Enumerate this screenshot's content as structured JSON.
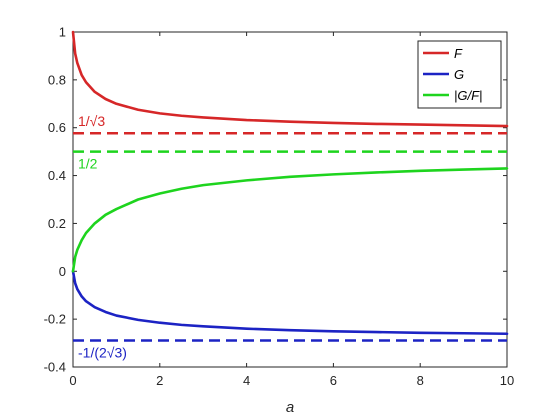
{
  "chart_data": {
    "type": "line",
    "xlabel": "a",
    "ylabel": "",
    "xlim": [
      0,
      10
    ],
    "ylim": [
      -0.4,
      1
    ],
    "xticks": [
      0,
      2,
      4,
      6,
      8,
      10
    ],
    "xtick_labels": [
      "0",
      "2",
      "4",
      "6",
      "8",
      "10"
    ],
    "yticks": [
      -0.4,
      -0.2,
      0,
      0.2,
      0.4,
      0.6,
      0.8,
      1
    ],
    "ytick_labels": [
      "-0.4",
      "-0.2",
      "0",
      "0.2",
      "0.4",
      "0.6",
      "0.8",
      "1"
    ],
    "grid": false,
    "legend_position": "top-right",
    "series": [
      {
        "name": "F",
        "color": "#d62728",
        "style": "solid",
        "x": [
          0,
          0.05,
          0.1,
          0.2,
          0.3,
          0.5,
          0.75,
          1,
          1.5,
          2,
          2.5,
          3,
          4,
          5,
          6,
          7,
          8,
          9,
          10
        ],
        "values": [
          1.0,
          0.91,
          0.87,
          0.82,
          0.79,
          0.75,
          0.72,
          0.7,
          0.675,
          0.66,
          0.65,
          0.643,
          0.632,
          0.625,
          0.62,
          0.616,
          0.613,
          0.61,
          0.607
        ]
      },
      {
        "name": "G",
        "color": "#1c23c4",
        "style": "solid",
        "x": [
          0,
          0.05,
          0.1,
          0.2,
          0.3,
          0.5,
          0.75,
          1,
          1.5,
          2,
          2.5,
          3,
          4,
          5,
          6,
          7,
          8,
          9,
          10
        ],
        "values": [
          0.0,
          -0.05,
          -0.075,
          -0.105,
          -0.125,
          -0.15,
          -0.17,
          -0.185,
          -0.203,
          -0.215,
          -0.224,
          -0.23,
          -0.24,
          -0.246,
          -0.251,
          -0.254,
          -0.257,
          -0.259,
          -0.261
        ]
      },
      {
        "name": "|G/F|",
        "color": "#1ed41e",
        "style": "solid",
        "x": [
          0,
          0.05,
          0.1,
          0.2,
          0.3,
          0.5,
          0.75,
          1,
          1.5,
          2,
          2.5,
          3,
          4,
          5,
          6,
          7,
          8,
          9,
          10
        ],
        "values": [
          0.0,
          0.06,
          0.09,
          0.13,
          0.16,
          0.2,
          0.236,
          0.26,
          0.3,
          0.325,
          0.345,
          0.36,
          0.38,
          0.395,
          0.405,
          0.413,
          0.42,
          0.425,
          0.43
        ]
      }
    ],
    "reference_lines": [
      {
        "label": "1/√3",
        "y": 0.577,
        "color": "#d62728",
        "style": "dashed",
        "label_pos": "above"
      },
      {
        "label": "1/2",
        "y": 0.5,
        "color": "#1ed41e",
        "style": "dashed",
        "label_pos": "below"
      },
      {
        "label": "-1/(2√3)",
        "y": -0.289,
        "color": "#1c23c4",
        "style": "dashed",
        "label_pos": "below"
      }
    ]
  }
}
